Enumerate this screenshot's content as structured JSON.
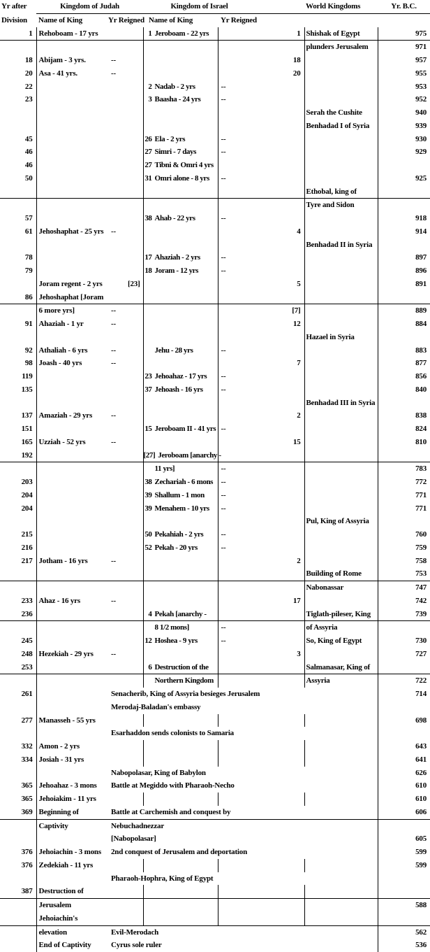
{
  "header": {
    "col1_line1": "Yr after",
    "col1_line2": "Division",
    "judah": "Kingdom of Judah",
    "israel": "Kingdom of Israel",
    "world": "World Kingdoms",
    "bc": "Yr. B.C.",
    "name_of_king_judah": "Name of King",
    "yr_reigned_judah": "Yr Reigned",
    "name_of_king_israel": "Name of King",
    "yr_reigned_israel": "Yr Reigned"
  },
  "rows": [
    {
      "yr": "1",
      "jname": "Rehoboam - 17 yrs",
      "inum": "1",
      "iname": "Jeroboam - 22 yrs",
      "iyr": "1",
      "world": "Shishak of Egypt",
      "bc": "975",
      "divider": true
    },
    {
      "world": "plunders Jerusalem",
      "bc": "971"
    },
    {
      "yr": "18",
      "jname": "Abijam - 3 yrs.",
      "jyr": "--",
      "iyr": "18",
      "bc": "957"
    },
    {
      "yr": "20",
      "jname": "Asa - 41 yrs.",
      "jyr": "--",
      "iyr": "20",
      "bc": "955"
    },
    {
      "yr": "22",
      "inum": "2",
      "iname": "Nadab - 2 yrs",
      "iyr": "--",
      "bc": "953"
    },
    {
      "yr": "23",
      "inum": "3",
      "iname": "Baasha - 24 yrs",
      "iyr": "--",
      "bc": "952"
    },
    {
      "world": "Serah the Cushite",
      "bc": "940"
    },
    {
      "world": "Benhadad I of Syria",
      "bc": "939"
    },
    {
      "yr": "45",
      "inum": "26",
      "iname": "Ela - 2 yrs",
      "iyr": "--",
      "bc": "930"
    },
    {
      "yr": "46",
      "inum": "27",
      "iname": "Simri - 7 days",
      "iyr": "--",
      "bc": "929"
    },
    {
      "yr": "46",
      "inum": "27",
      "iname": "Tibni & Omri 4 yrs"
    },
    {
      "yr": "50",
      "inum": "31",
      "iname": "Omri alone - 8 yrs",
      "iyr": "--",
      "bc": "925"
    },
    {
      "world": "Ethobal, king of",
      "divider": true
    },
    {
      "world": "Tyre and Sidon"
    },
    {
      "yr": "57",
      "inum": "38",
      "iname": "Ahab - 22 yrs",
      "iyr": "--",
      "bc": "918"
    },
    {
      "yr": "61",
      "jname": "Jehoshaphat - 25 yrs",
      "jyr": "--",
      "iyr": "4",
      "bc": "914"
    },
    {
      "world": "Benhadad II in Syria"
    },
    {
      "yr": "78",
      "inum": "17",
      "iname": "Ahaziah - 2 yrs",
      "iyr": "--",
      "bc": "897"
    },
    {
      "yr": "79",
      "inum": "18",
      "iname": "Joram - 12 yrs",
      "iyr": "--",
      "bc": "896"
    },
    {
      "jname": "Joram regent - 2 yrs",
      "jyr": "[23]",
      "iyr": "5",
      "bc": "891"
    },
    {
      "yr": "86",
      "jname": "Jehoshaphat [Joram",
      "divider": true
    },
    {
      "jname": "6 more yrs]",
      "jyr": "--",
      "iyr": "[7]",
      "bc": "889"
    },
    {
      "yr": "91",
      "jname": "Ahaziah - 1 yr",
      "jyr": "--",
      "iyr": "12",
      "bc": "884"
    },
    {
      "world": "Hazael in Syria"
    },
    {
      "yr": "92",
      "jname": "Athaliah - 6 yrs",
      "jyr": "--",
      "iname": "Jehu - 28 yrs",
      "iyr": "--",
      "bc": "883"
    },
    {
      "yr": "98",
      "jname": "Joash - 40 yrs",
      "jyr": "--",
      "iyr": "7",
      "bc": "877"
    },
    {
      "yr": "119",
      "inum": "23",
      "iname": "Jehoahaz - 17 yrs",
      "iyr": "--",
      "bc": "856"
    },
    {
      "yr": "135",
      "inum": "37",
      "iname": "Jehoash - 16 yrs",
      "iyr": "--",
      "bc": "840"
    },
    {
      "world": "Benhadad III in Syria"
    },
    {
      "yr": "137",
      "jname": "Amaziah - 29 yrs",
      "jyr": "--",
      "iyr": "2",
      "bc": "838"
    },
    {
      "yr": "151",
      "inum": "15",
      "iname": "Jeroboam II - 41 yrs",
      "iyr": "--",
      "bc": "824"
    },
    {
      "yr": "165",
      "jname": "Uzziah - 52 yrs",
      "jyr": "--",
      "iyr": "15",
      "bc": "810"
    },
    {
      "yr": "192",
      "inum": "[27]",
      "iname": "Jeroboam [anarchy -",
      "divider": true
    },
    {
      "iname": "11 yrs]",
      "iyr": "--",
      "bc": "783"
    },
    {
      "yr": "203",
      "inum": "38",
      "iname": "Zechariah - 6 mons",
      "iyr": "--",
      "bc": "772"
    },
    {
      "yr": "204",
      "inum": "39",
      "iname": "Shallum - 1 mon",
      "iyr": "--",
      "bc": "771"
    },
    {
      "yr": "204",
      "inum": "39",
      "iname": "Menahem - 10 yrs",
      "iyr": "--",
      "bc": "771"
    },
    {
      "world": "Pul, King of Assyria"
    },
    {
      "yr": "215",
      "inum": "50",
      "iname": "Pekahiah - 2 yrs",
      "iyr": "--",
      "bc": "760"
    },
    {
      "yr": "216",
      "inum": "52",
      "iname": "Pekah - 20 yrs",
      "iyr": "--",
      "bc": "759"
    },
    {
      "yr": "217",
      "jname": "Jotham - 16 yrs",
      "jyr": "--",
      "iyr": "2",
      "bc": "758"
    },
    {
      "world": "Building of Rome",
      "bc": "753",
      "divider": true
    },
    {
      "world": "Nabonassar",
      "bc": "747"
    },
    {
      "yr": "233",
      "jname": "Ahaz - 16 yrs",
      "jyr": "--",
      "iyr": "17",
      "bc": "742"
    },
    {
      "yr": "236",
      "inum": "4",
      "iname": "Pekah [anarchy -",
      "world": "Tiglath-pileser, King",
      "bc": "739",
      "divider": true
    },
    {
      "iname": "8 1/2 mons]",
      "iyr": "--",
      "world": "of Assyria"
    },
    {
      "yr": "245",
      "inum": "12",
      "iname": "Hoshea - 9 yrs",
      "iyr": "--",
      "world": "So, King of Egypt",
      "bc": "730"
    },
    {
      "yr": "248",
      "jname": "Hezekiah - 29 yrs",
      "jyr": "--",
      "iyr": "3",
      "bc": "727"
    },
    {
      "yr": "253",
      "inum": "6",
      "iname": "Destruction of the",
      "world": "Salmanasar, King of",
      "divider": true
    },
    {
      "iname": "Northern Kingdom",
      "world": "Assyria",
      "bc": "722"
    },
    {
      "yr": "261",
      "span": "Senacherib, King of Assyria besieges Jerusalem",
      "bc": "714"
    },
    {
      "span": "Merodaj-Baladan's embassy"
    },
    {
      "yr": "277",
      "jname": "Manasseh - 55 yrs",
      "bc": "698"
    },
    {
      "span": "Esarhaddon sends colonists to Samaria"
    },
    {
      "yr": "332",
      "jname": "Amon - 2 yrs",
      "bc": "643"
    },
    {
      "yr": "334",
      "jname": "Josiah - 31 yrs",
      "bc": "641"
    },
    {
      "span": "Nabopolasar, King of Babylon",
      "bc": "626"
    },
    {
      "yr": "365",
      "jname": "Jehoahaz - 3 mons",
      "span": "Battle at Megiddo with Pharaoh-Necho",
      "bc": "610"
    },
    {
      "yr": "365",
      "jname": "Jehoiakim - 11 yrs",
      "bc": "610"
    },
    {
      "yr": "369",
      "jname": "Beginning of",
      "span": "Battle at Carchemish and conquest by",
      "bc": "606",
      "divider": true
    },
    {
      "jname": "Captivity",
      "span": "Nebuchadnezzar"
    },
    {
      "span": "[Nabopolasar]",
      "bc": "605"
    },
    {
      "yr": "376",
      "jname": "Jehoiachin - 3 mons",
      "span": "2nd conquest of Jerusalem and deportation",
      "bc": "599"
    },
    {
      "yr": "376",
      "jname": "Zedekiah - 11 yrs",
      "bc": "599"
    },
    {
      "span": "Pharaoh-Hophra, King of Egypt"
    },
    {
      "yr": "387",
      "jname": "Destruction of",
      "divider": true
    },
    {
      "jname": "Jerusalem",
      "bc": "588"
    },
    {
      "jname": "Jehoiachin's",
      "divider": true
    },
    {
      "jname": "elevation",
      "span": "Evil-Merodach",
      "bc": "562"
    },
    {
      "jname": "End of Captivity",
      "span": "Cyrus sole ruler",
      "bc": "536"
    }
  ]
}
